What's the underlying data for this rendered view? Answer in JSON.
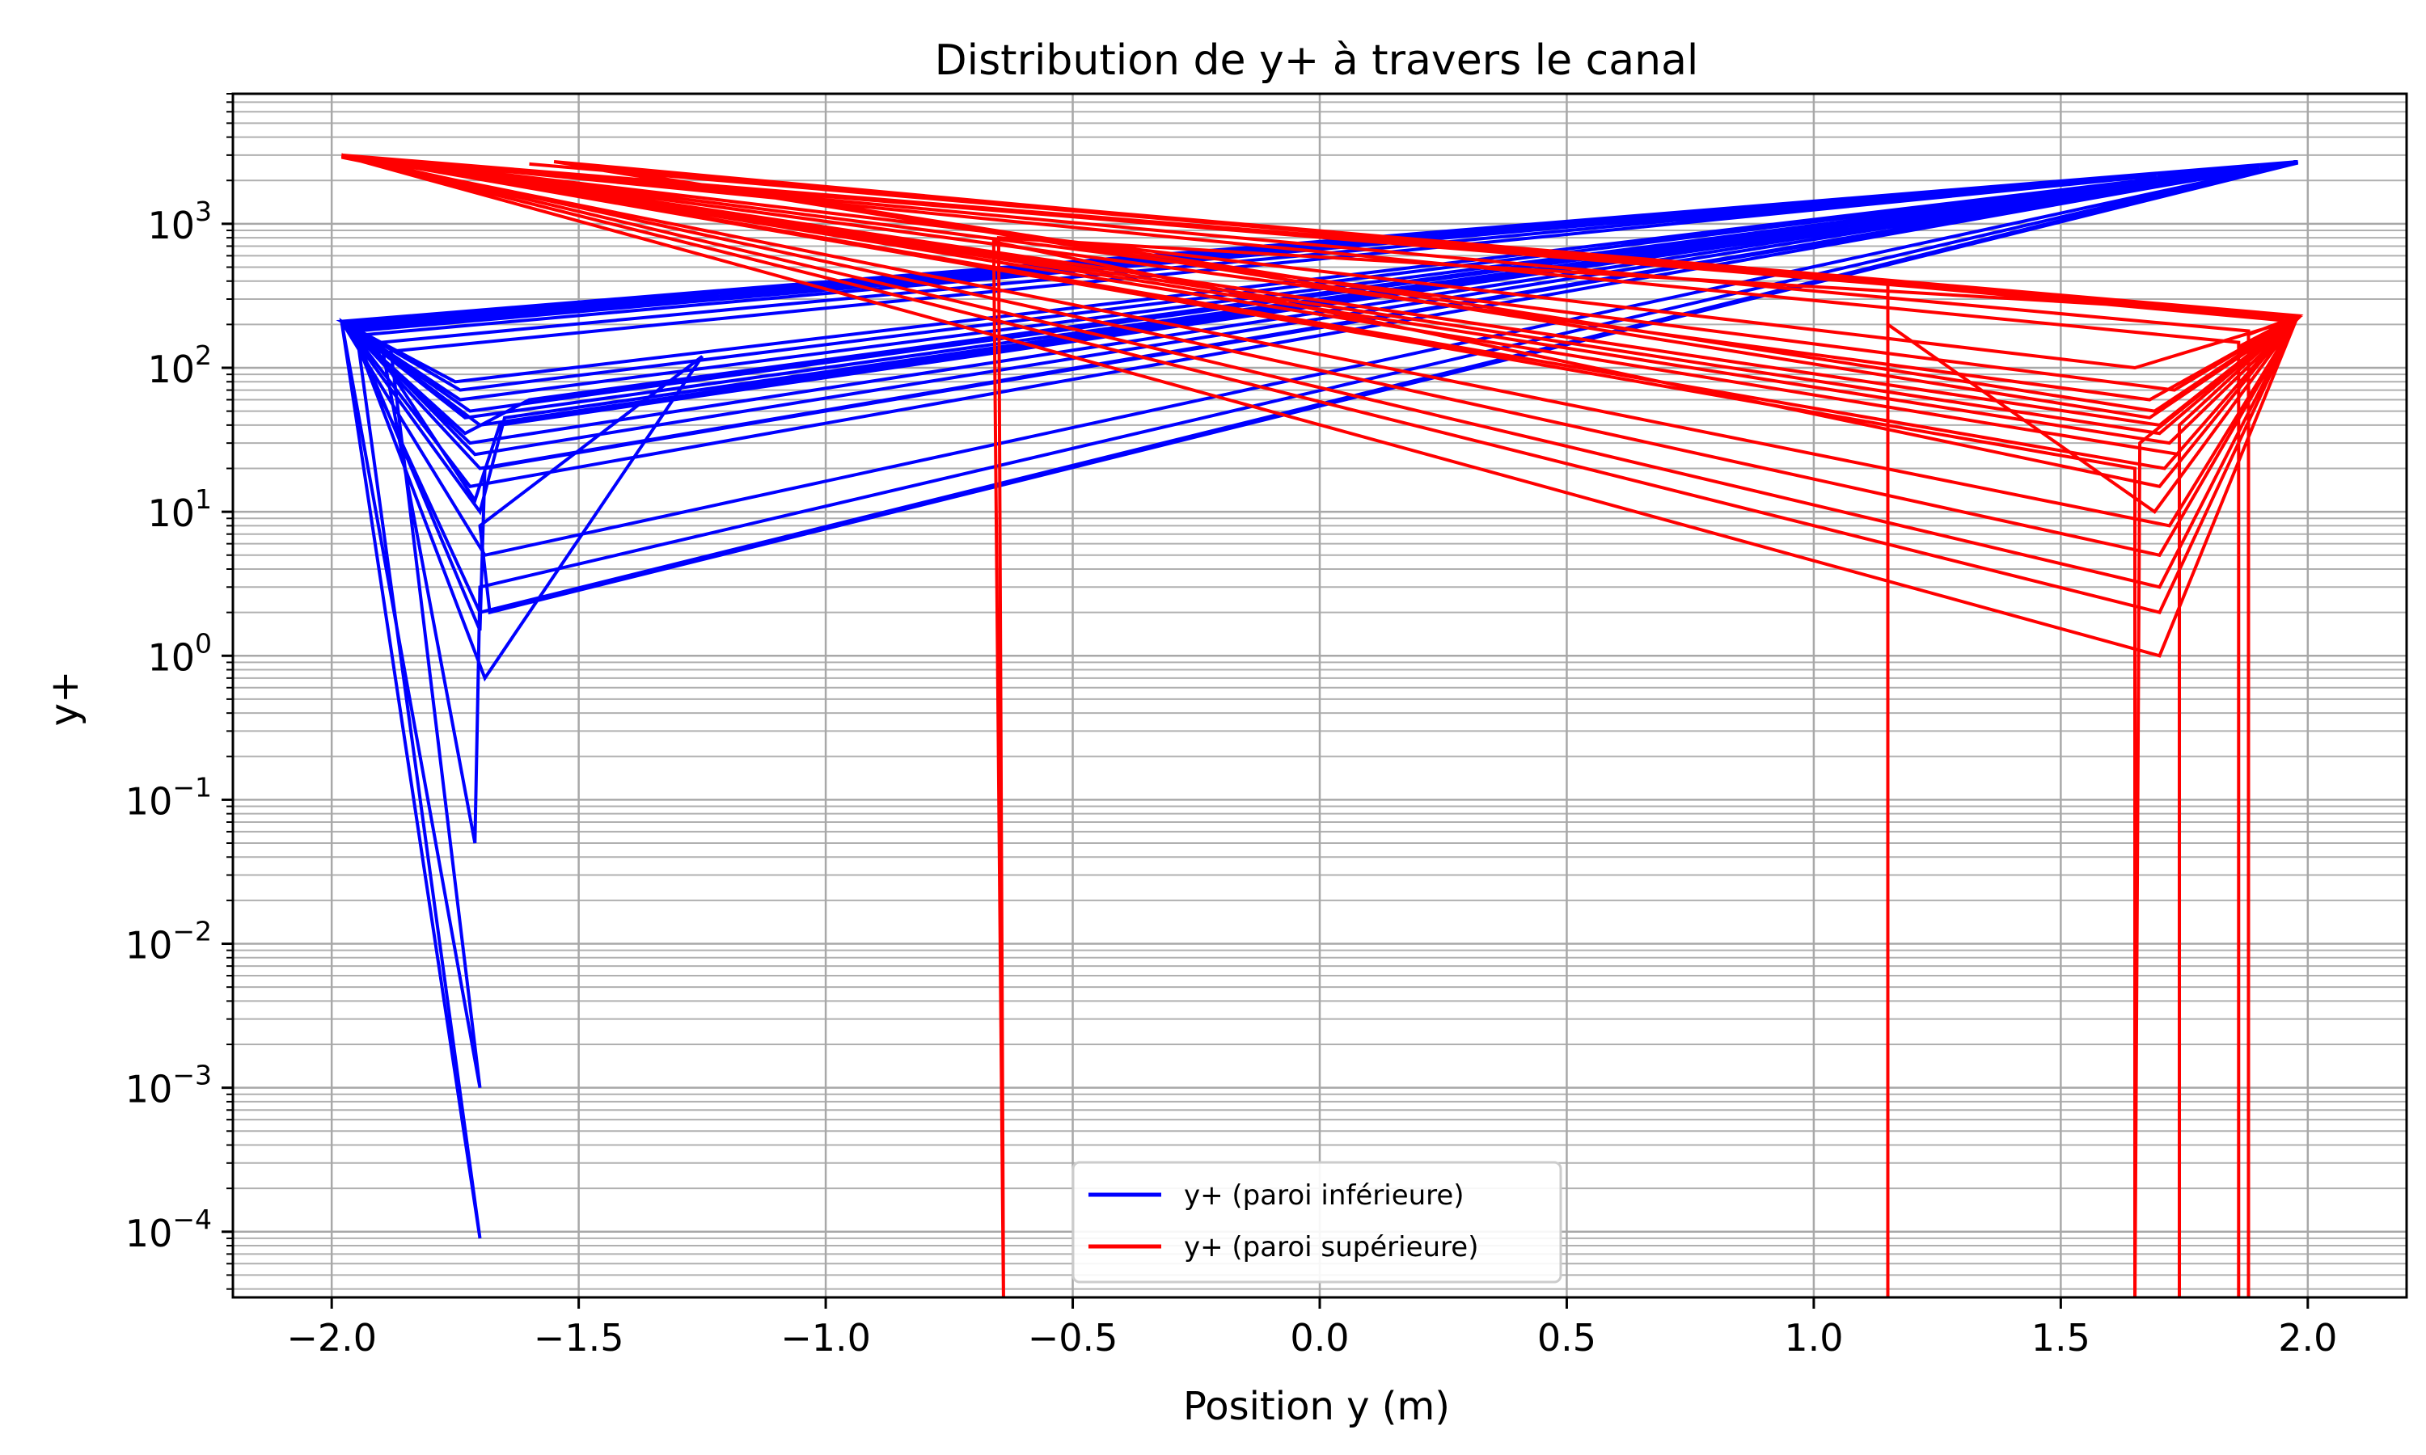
{
  "chart_data": {
    "type": "line",
    "title": "Distribution de y+ à travers le canal",
    "xlabel": "Position y (m)",
    "ylabel": "y+",
    "xlim": [
      -2.2,
      2.2
    ],
    "ylim": [
      3.5e-05,
      8000
    ],
    "yscale": "log",
    "grid": true,
    "grid_minor": true,
    "legend_position": "lower-center",
    "x_ticks": [
      {
        "value": -2.0,
        "label": "−2.0"
      },
      {
        "value": -1.5,
        "label": "−1.5"
      },
      {
        "value": -1.0,
        "label": "−1.0"
      },
      {
        "value": -0.5,
        "label": "−0.5"
      },
      {
        "value": 0.0,
        "label": "0.0"
      },
      {
        "value": 0.5,
        "label": "0.5"
      },
      {
        "value": 1.0,
        "label": "1.0"
      },
      {
        "value": 1.5,
        "label": "1.5"
      },
      {
        "value": 2.0,
        "label": "2.0"
      }
    ],
    "y_ticks": [
      {
        "exp": -4,
        "base": "10",
        "sup": "−4"
      },
      {
        "exp": -3,
        "base": "10",
        "sup": "−3"
      },
      {
        "exp": -2,
        "base": "10",
        "sup": "−2"
      },
      {
        "exp": -1,
        "base": "10",
        "sup": "−1"
      },
      {
        "exp": 0,
        "base": "10",
        "sup": "0"
      },
      {
        "exp": 1,
        "base": "10",
        "sup": "1"
      },
      {
        "exp": 2,
        "base": "10",
        "sup": "2"
      },
      {
        "exp": 3,
        "base": "10",
        "sup": "3"
      }
    ],
    "series": [
      {
        "name": "y+ (paroi inférieure)",
        "color": "#0000ff",
        "points": [
          [
            -1.98,
            210
          ],
          [
            -1.7,
            40
          ],
          [
            1.98,
            2700
          ],
          [
            -1.98,
            210
          ],
          [
            -1.72,
            30
          ],
          [
            1.98,
            2700
          ],
          [
            -1.97,
            200
          ],
          [
            -1.74,
            60
          ],
          [
            1.98,
            2650
          ],
          [
            -1.97,
            205
          ],
          [
            -1.7,
            2
          ],
          [
            1.98,
            2700
          ],
          [
            -1.96,
            190
          ],
          [
            -1.71,
            25
          ],
          [
            1.98,
            2700
          ],
          [
            -1.95,
            180
          ],
          [
            -1.7,
            9e-05
          ],
          [
            -1.98,
            210
          ],
          [
            -1.69,
            5
          ],
          [
            1.98,
            2700
          ],
          [
            -1.97,
            200
          ],
          [
            -1.73,
            45
          ],
          [
            1.97,
            2600
          ],
          [
            -1.96,
            195
          ],
          [
            -1.7,
            1.5
          ],
          [
            -1.69,
            20
          ],
          [
            1.98,
            2650
          ],
          [
            -1.95,
            185
          ],
          [
            -1.74,
            70
          ],
          [
            1.98,
            2700
          ],
          [
            -1.98,
            210
          ],
          [
            -1.7,
            10
          ],
          [
            -1.65,
            45
          ],
          [
            1.98,
            2700
          ],
          [
            -1.9,
            150
          ],
          [
            -1.71,
            0.05
          ],
          [
            -1.7,
            3
          ],
          [
            1.98,
            2700
          ],
          [
            -1.97,
            200
          ],
          [
            -1.72,
            15
          ],
          [
            1.98,
            2700
          ],
          [
            -1.96,
            190
          ],
          [
            -1.69,
            0.7
          ],
          [
            -1.25,
            120
          ],
          [
            -1.7,
            8
          ],
          [
            -1.68,
            2
          ],
          [
            1.98,
            2650
          ],
          [
            -1.98,
            210
          ],
          [
            -1.73,
            35
          ],
          [
            -1.6,
            60
          ],
          [
            1.98,
            2700
          ],
          [
            -1.88,
            130
          ],
          [
            -1.7,
            0.001
          ],
          [
            -1.98,
            210
          ],
          [
            -1.72,
            50
          ],
          [
            1.98,
            2700
          ],
          [
            -1.93,
            170
          ],
          [
            -1.71,
            12
          ],
          [
            -1.66,
            40
          ],
          [
            1.98,
            2650
          ],
          [
            -1.98,
            210
          ],
          [
            -1.75,
            80
          ],
          [
            1.98,
            2700
          ],
          [
            -1.97,
            200
          ],
          [
            -1.7,
            20
          ],
          [
            1.98,
            2700
          ]
        ]
      },
      {
        "name": "y+ (paroi supérieure)",
        "color": "#ff0000",
        "points": [
          [
            -1.98,
            3000
          ],
          [
            1.7,
            40
          ],
          [
            1.98,
            230
          ],
          [
            -1.98,
            3000
          ],
          [
            1.72,
            30
          ],
          [
            1.98,
            220
          ],
          [
            -1.98,
            2950
          ],
          [
            1.68,
            60
          ],
          [
            1.98,
            225
          ],
          [
            -1.97,
            2900
          ],
          [
            1.7,
            1.0
          ],
          [
            1.98,
            230
          ],
          [
            -1.98,
            3000
          ],
          [
            1.71,
            20
          ],
          [
            1.97,
            210
          ],
          [
            -1.55,
            2700
          ],
          [
            1.69,
            50
          ],
          [
            1.98,
            230
          ],
          [
            -1.98,
            3000
          ],
          [
            1.7,
            5
          ],
          [
            1.98,
            225
          ],
          [
            -1.98,
            3000
          ],
          [
            1.73,
            70
          ],
          [
            1.98,
            230
          ],
          [
            -1.98,
            2950
          ],
          [
            1.7,
            2
          ],
          [
            1.98,
            230
          ],
          [
            -0.65,
            800
          ],
          [
            -0.64,
            3e-05
          ],
          [
            -0.66,
            750
          ],
          [
            1.7,
            15
          ],
          [
            1.98,
            230
          ],
          [
            -1.98,
            3000
          ],
          [
            1.65,
            100
          ],
          [
            1.98,
            220
          ],
          [
            -1.98,
            3000
          ],
          [
            1.7,
            3
          ],
          [
            1.98,
            230
          ],
          [
            -1.6,
            2600
          ],
          [
            1.15,
            400
          ],
          [
            1.15,
            3e-05
          ],
          [
            1.15,
            200
          ],
          [
            1.69,
            10
          ],
          [
            1.98,
            225
          ],
          [
            -1.98,
            3000
          ],
          [
            1.65,
            20
          ],
          [
            1.65,
            3e-05
          ],
          [
            1.66,
            30
          ],
          [
            1.98,
            230
          ],
          [
            -1.98,
            3000
          ],
          [
            1.74,
            25
          ],
          [
            1.74,
            3e-05
          ],
          [
            1.74,
            40
          ],
          [
            1.98,
            230
          ],
          [
            -1.98,
            2900
          ],
          [
            1.72,
            8
          ],
          [
            1.98,
            225
          ],
          [
            -1.98,
            3000
          ],
          [
            1.86,
            150
          ],
          [
            1.86,
            3e-05
          ],
          [
            1.86,
            140
          ],
          [
            1.98,
            230
          ],
          [
            -1.98,
            3000
          ],
          [
            1.88,
            180
          ],
          [
            1.88,
            3e-05
          ],
          [
            1.88,
            170
          ],
          [
            1.98,
            230
          ],
          [
            -1.98,
            3000
          ],
          [
            1.7,
            35
          ],
          [
            1.98,
            230
          ],
          [
            -1.5,
            2500
          ],
          [
            1.68,
            45
          ],
          [
            1.98,
            225
          ]
        ]
      }
    ]
  }
}
